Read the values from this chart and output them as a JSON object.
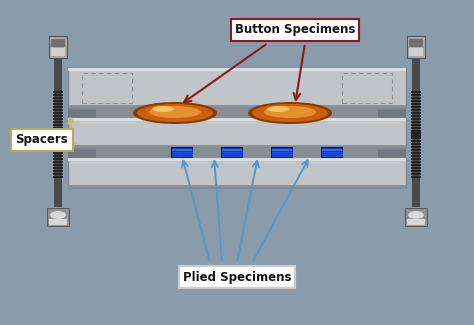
{
  "bg_color": "#8a9bab",
  "plate_color": "#c0c5ca",
  "plate_edge": "#808890",
  "plate_dark": "#9aa0a8",
  "gap_color": "#888e94",
  "bolt_shaft_color": "#4a4a4a",
  "bolt_thread_color": "#2a2a2a",
  "nut_body": "#aaaaaa",
  "nut_highlight": "#d0d0d0",
  "nut_shadow": "#707070",
  "foot_body": "#909090",
  "foot_highlight": "#d8d8d8",
  "foot_shadow": "#484848",
  "spring_dark": "#222222",
  "spring_mid": "#555555",
  "blue_spring": "#1133bb",
  "blue_spring2": "#2255dd",
  "btn_dark": "#8b3a00",
  "btn_mid": "#c86010",
  "btn_light": "#e89030",
  "btn_highlight": "#ffcc70",
  "spacer_strip": "#9a9e7a",
  "label_bg": "#ffffff",
  "label_edge_brown": "#8B1A1A",
  "label_edge_tan": "#b8a860",
  "arrow_brown": "#8B1A1A",
  "arrow_blue": "#5599cc",
  "arrow_tan": "#c8b870",
  "text_col": "#111111",
  "dashed_rect": "#909090",
  "title": "Button Specimens",
  "label_spacers": "Spacers",
  "label_plied": "Plied Specimens",
  "figw": 4.74,
  "figh": 3.25,
  "dpi": 100
}
